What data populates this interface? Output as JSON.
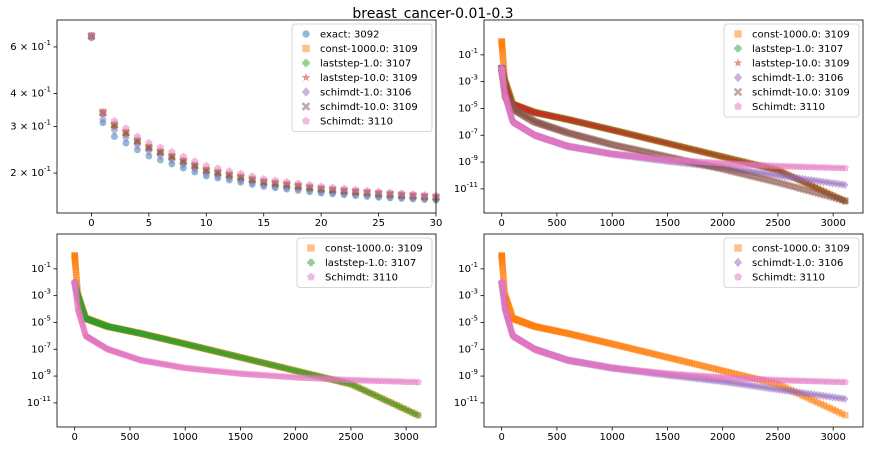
{
  "title": "breast_cancer-0.01-0.3",
  "colors": {
    "exact": "#1f77b4",
    "const-1000.0": "#ff7f0e",
    "laststep-1.0": "#2ca02c",
    "laststep-10.0": "#d62728",
    "schimdt-1.0": "#9467bd",
    "schimdt-10.0": "#8c564b",
    "Schimdt": "#e377c2"
  },
  "chart_data": [
    {
      "type": "scatter",
      "panel": "top-left",
      "xlim": [
        -3,
        30
      ],
      "ylim_log10": [
        -0.85,
        -0.12
      ],
      "y_scale": "log",
      "x_ticks": [
        0,
        5,
        10,
        15,
        20,
        25,
        30
      ],
      "y_ticks": [
        {
          "label": "2 × 10^-1",
          "value": 0.2
        },
        {
          "label": "3 × 10^-1",
          "value": 0.3
        },
        {
          "label": "4 × 10^-1",
          "value": 0.4
        },
        {
          "label": "6 × 10^-1",
          "value": 0.6
        }
      ],
      "legend_position": "upper right",
      "series": [
        {
          "name": "exact",
          "label": "exact: 3092",
          "marker": "circle",
          "x": [
            0,
            1,
            2,
            3,
            4,
            5,
            10,
            15,
            20,
            25,
            30
          ],
          "y": [
            0.65,
            0.31,
            0.275,
            0.26,
            0.245,
            0.232,
            0.195,
            0.178,
            0.168,
            0.162,
            0.158
          ]
        },
        {
          "name": "const-1000.0",
          "label": "const-1000.0: 3109",
          "marker": "square",
          "x": [
            0,
            1,
            2,
            3,
            4,
            5,
            10,
            15,
            20,
            25,
            30
          ],
          "y": [
            0.66,
            0.34,
            0.305,
            0.285,
            0.265,
            0.25,
            0.205,
            0.185,
            0.174,
            0.167,
            0.162
          ]
        },
        {
          "name": "laststep-1.0",
          "label": "laststep-1.0: 3107",
          "marker": "plus",
          "x": [
            0,
            1,
            2,
            3,
            4,
            5,
            10,
            15,
            20,
            25,
            30
          ],
          "y": [
            0.66,
            0.335,
            0.3,
            0.28,
            0.262,
            0.248,
            0.204,
            0.184,
            0.173,
            0.166,
            0.161
          ]
        },
        {
          "name": "laststep-10.0",
          "label": "laststep-10.0: 3109",
          "marker": "star",
          "x": [
            0,
            1,
            2,
            3,
            4,
            5,
            10,
            15,
            20,
            25,
            30
          ],
          "y": [
            0.66,
            0.34,
            0.305,
            0.286,
            0.266,
            0.251,
            0.206,
            0.186,
            0.175,
            0.168,
            0.163
          ]
        },
        {
          "name": "schimdt-1.0",
          "label": "schimdt-1.0: 3106",
          "marker": "diamond",
          "x": [
            0,
            1,
            2,
            3,
            4,
            5,
            10,
            15,
            20,
            25,
            30
          ],
          "y": [
            0.66,
            0.32,
            0.29,
            0.272,
            0.255,
            0.242,
            0.2,
            0.181,
            0.171,
            0.164,
            0.16
          ]
        },
        {
          "name": "schimdt-10.0",
          "label": "schimdt-10.0: 3109",
          "marker": "x",
          "x": [
            0,
            1,
            2,
            3,
            4,
            5,
            10,
            15,
            20,
            25,
            30
          ],
          "y": [
            0.66,
            0.338,
            0.303,
            0.284,
            0.264,
            0.25,
            0.205,
            0.185,
            0.174,
            0.167,
            0.162
          ]
        },
        {
          "name": "Schimdt",
          "label": "Schimdt: 3110",
          "marker": "pentagon",
          "x": [
            0,
            1,
            2,
            3,
            4,
            5,
            10,
            15,
            20,
            25,
            30
          ],
          "y": [
            0.66,
            0.34,
            0.315,
            0.295,
            0.275,
            0.26,
            0.213,
            0.19,
            0.178,
            0.17,
            0.164
          ]
        }
      ]
    },
    {
      "type": "scatter",
      "panel": "top-right",
      "xlim": [
        -160,
        3270
      ],
      "ylim_log10": [
        -12.8,
        1.6
      ],
      "y_scale": "log",
      "x_ticks": [
        0,
        500,
        1000,
        1500,
        2000,
        2500,
        3000
      ],
      "y_ticks": [
        {
          "label": "10^-11",
          "value": 1e-11
        },
        {
          "label": "10^-9",
          "value": 1e-09
        },
        {
          "label": "10^-7",
          "value": 1e-07
        },
        {
          "label": "10^-5",
          "value": 1e-05
        },
        {
          "label": "10^-3",
          "value": 0.001
        },
        {
          "label": "10^-1",
          "value": 0.1
        }
      ],
      "legend_position": "upper right",
      "series": [
        {
          "name": "const-1000.0",
          "label": "const-1000.0: 3109",
          "marker": "square",
          "x": [
            0,
            30,
            100,
            300,
            600,
            1000,
            1500,
            2000,
            2500,
            3109
          ],
          "y": [
            1.0,
            0.001,
            2e-05,
            5e-06,
            1.5e-06,
            2.5e-07,
            2.5e-08,
            2.5e-09,
            2.5e-10,
            1.2e-12
          ]
        },
        {
          "name": "laststep-1.0",
          "label": "laststep-1.0: 3107",
          "marker": "plus",
          "x": [
            0,
            30,
            100,
            300,
            600,
            1000,
            1500,
            2000,
            2500,
            3107
          ],
          "y": [
            0.01,
            0.001,
            2e-05,
            5e-06,
            1.5e-06,
            2.5e-07,
            2.5e-08,
            2.5e-09,
            2.5e-10,
            1.2e-12
          ]
        },
        {
          "name": "laststep-10.0",
          "label": "laststep-10.0: 3109",
          "marker": "star",
          "x": [
            0,
            30,
            100,
            300,
            600,
            1000,
            1500,
            2000,
            2500,
            3109
          ],
          "y": [
            0.01,
            0.001,
            2e-05,
            5e-06,
            1.5e-06,
            2.5e-07,
            2.5e-08,
            2.5e-09,
            2.5e-10,
            1.2e-12
          ]
        },
        {
          "name": "schimdt-1.0",
          "label": "schimdt-1.0: 3106",
          "marker": "diamond",
          "x": [
            0,
            30,
            100,
            300,
            600,
            1000,
            1500,
            2000,
            2500,
            3106
          ],
          "y": [
            0.01,
            0.0001,
            1e-06,
            1e-07,
            1.5e-08,
            4e-09,
            1.2e-09,
            4e-10,
            1e-10,
            2e-11
          ]
        },
        {
          "name": "schimdt-10.0",
          "label": "schimdt-10.0: 3109",
          "marker": "x",
          "x": [
            0,
            30,
            100,
            300,
            600,
            1000,
            1500,
            2000,
            2500,
            3109
          ],
          "y": [
            0.01,
            0.0001,
            1e-05,
            1e-06,
            1.5e-07,
            2e-08,
            2.5e-09,
            3e-10,
            3e-11,
            1.3e-12
          ]
        },
        {
          "name": "Schimdt",
          "label": "Schimdt: 3110",
          "marker": "pentagon",
          "x": [
            0,
            30,
            100,
            300,
            600,
            1000,
            1500,
            2000,
            2500,
            3110
          ],
          "y": [
            0.01,
            0.0001,
            1e-06,
            1e-07,
            1.5e-08,
            4e-09,
            1.5e-09,
            8e-10,
            5e-10,
            3.5e-10
          ]
        }
      ]
    },
    {
      "type": "scatter",
      "panel": "bottom-left",
      "xlim": [
        -160,
        3270
      ],
      "ylim_log10": [
        -12.8,
        1.6
      ],
      "y_scale": "log",
      "x_ticks": [
        0,
        500,
        1000,
        1500,
        2000,
        2500,
        3000
      ],
      "y_ticks": [
        {
          "label": "10^-11",
          "value": 1e-11
        },
        {
          "label": "10^-9",
          "value": 1e-09
        },
        {
          "label": "10^-7",
          "value": 1e-07
        },
        {
          "label": "10^-5",
          "value": 1e-05
        },
        {
          "label": "10^-3",
          "value": 0.001
        },
        {
          "label": "10^-1",
          "value": 0.1
        }
      ],
      "legend_position": "upper right",
      "series": [
        {
          "name": "const-1000.0",
          "label": "const-1000.0: 3109",
          "marker": "square",
          "x": [
            0,
            30,
            100,
            300,
            600,
            1000,
            1500,
            2000,
            2500,
            3109
          ],
          "y": [
            1.0,
            0.001,
            2e-05,
            5e-06,
            1.5e-06,
            2.5e-07,
            2.5e-08,
            2.5e-09,
            2.5e-10,
            1.2e-12
          ]
        },
        {
          "name": "laststep-1.0",
          "label": "laststep-1.0: 3107",
          "marker": "plus",
          "x": [
            0,
            30,
            100,
            300,
            600,
            1000,
            1500,
            2000,
            2500,
            3107
          ],
          "y": [
            0.01,
            0.001,
            2e-05,
            5e-06,
            1.5e-06,
            2.5e-07,
            2.5e-08,
            2.5e-09,
            2.5e-10,
            1.2e-12
          ]
        },
        {
          "name": "Schimdt",
          "label": "Schimdt: 3110",
          "marker": "pentagon",
          "x": [
            0,
            30,
            100,
            300,
            600,
            1000,
            1500,
            2000,
            2500,
            3110
          ],
          "y": [
            0.01,
            0.0001,
            1e-06,
            1e-07,
            1.5e-08,
            4e-09,
            1.5e-09,
            8e-10,
            5e-10,
            3.5e-10
          ]
        }
      ]
    },
    {
      "type": "scatter",
      "panel": "bottom-right",
      "xlim": [
        -160,
        3270
      ],
      "ylim_log10": [
        -12.8,
        1.6
      ],
      "y_scale": "log",
      "x_ticks": [
        0,
        500,
        1000,
        1500,
        2000,
        2500,
        3000
      ],
      "y_ticks": [
        {
          "label": "10^-11",
          "value": 1e-11
        },
        {
          "label": "10^-9",
          "value": 1e-09
        },
        {
          "label": "10^-7",
          "value": 1e-07
        },
        {
          "label": "10^-5",
          "value": 1e-05
        },
        {
          "label": "10^-3",
          "value": 0.001
        },
        {
          "label": "10^-1",
          "value": 0.1
        }
      ],
      "legend_position": "upper right",
      "series": [
        {
          "name": "const-1000.0",
          "label": "const-1000.0: 3109",
          "marker": "square",
          "x": [
            0,
            30,
            100,
            300,
            600,
            1000,
            1500,
            2000,
            2500,
            3109
          ],
          "y": [
            1.0,
            0.001,
            2e-05,
            5e-06,
            1.5e-06,
            2.5e-07,
            2.5e-08,
            2.5e-09,
            2.5e-10,
            1.2e-12
          ]
        },
        {
          "name": "schimdt-1.0",
          "label": "schimdt-1.0: 3106",
          "marker": "diamond",
          "x": [
            0,
            30,
            100,
            300,
            600,
            1000,
            1500,
            2000,
            2500,
            3106
          ],
          "y": [
            0.01,
            0.0001,
            1e-06,
            1e-07,
            1.5e-08,
            4e-09,
            1.2e-09,
            4e-10,
            1e-10,
            2e-11
          ]
        },
        {
          "name": "Schimdt",
          "label": "Schimdt: 3110",
          "marker": "pentagon",
          "x": [
            0,
            30,
            100,
            300,
            600,
            1000,
            1500,
            2000,
            2500,
            3110
          ],
          "y": [
            0.01,
            0.0001,
            1e-06,
            1e-07,
            1.5e-08,
            4e-09,
            1.5e-09,
            8e-10,
            5e-10,
            3.5e-10
          ]
        }
      ]
    }
  ]
}
